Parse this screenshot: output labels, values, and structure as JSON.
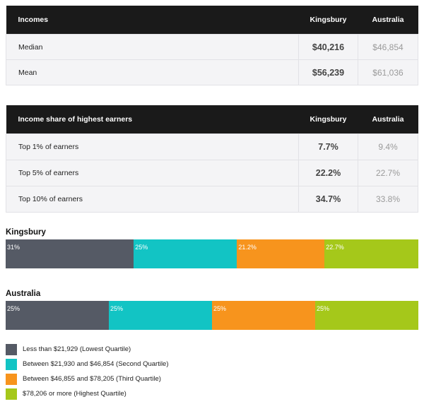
{
  "incomes_table": {
    "headers": [
      "Incomes",
      "Kingsbury",
      "Australia"
    ],
    "rows": [
      {
        "label": "Median",
        "kingsbury": "$40,216",
        "australia": "$46,854"
      },
      {
        "label": "Mean",
        "kingsbury": "$56,239",
        "australia": "$61,036"
      }
    ]
  },
  "share_table": {
    "headers": [
      "Income share of highest earners",
      "Kingsbury",
      "Australia"
    ],
    "rows": [
      {
        "label": "Top 1% of earners",
        "kingsbury": "7.7%",
        "australia": "9.4%"
      },
      {
        "label": "Top 5% of earners",
        "kingsbury": "22.2%",
        "australia": "22.7%"
      },
      {
        "label": "Top 10% of earners",
        "kingsbury": "34.7%",
        "australia": "33.8%"
      }
    ]
  },
  "chart_data": {
    "type": "bar",
    "orientation": "horizontal-stacked-100",
    "categories": [
      "Kingsbury",
      "Australia"
    ],
    "series": [
      {
        "name": "Less than $21,929 (Lowest Quartile)",
        "color": "#555a65",
        "values": [
          31,
          25
        ],
        "labels": [
          "31%",
          "25%"
        ]
      },
      {
        "name": "Between $21,930 and $46,854 (Second Quartile)",
        "color": "#12c4c4",
        "values": [
          25,
          25
        ],
        "labels": [
          "25%",
          "25%"
        ]
      },
      {
        "name": "Between $46,855 and $78,205 (Third Quartile)",
        "color": "#f7941d",
        "values": [
          21.2,
          25
        ],
        "labels": [
          "21.2%",
          "25%"
        ]
      },
      {
        "name": "$78,206 or more (Highest Quartile)",
        "color": "#a5c81a",
        "values": [
          22.7,
          25
        ],
        "labels": [
          "22.7%",
          "25%"
        ]
      }
    ],
    "legend_position": "bottom-left"
  }
}
